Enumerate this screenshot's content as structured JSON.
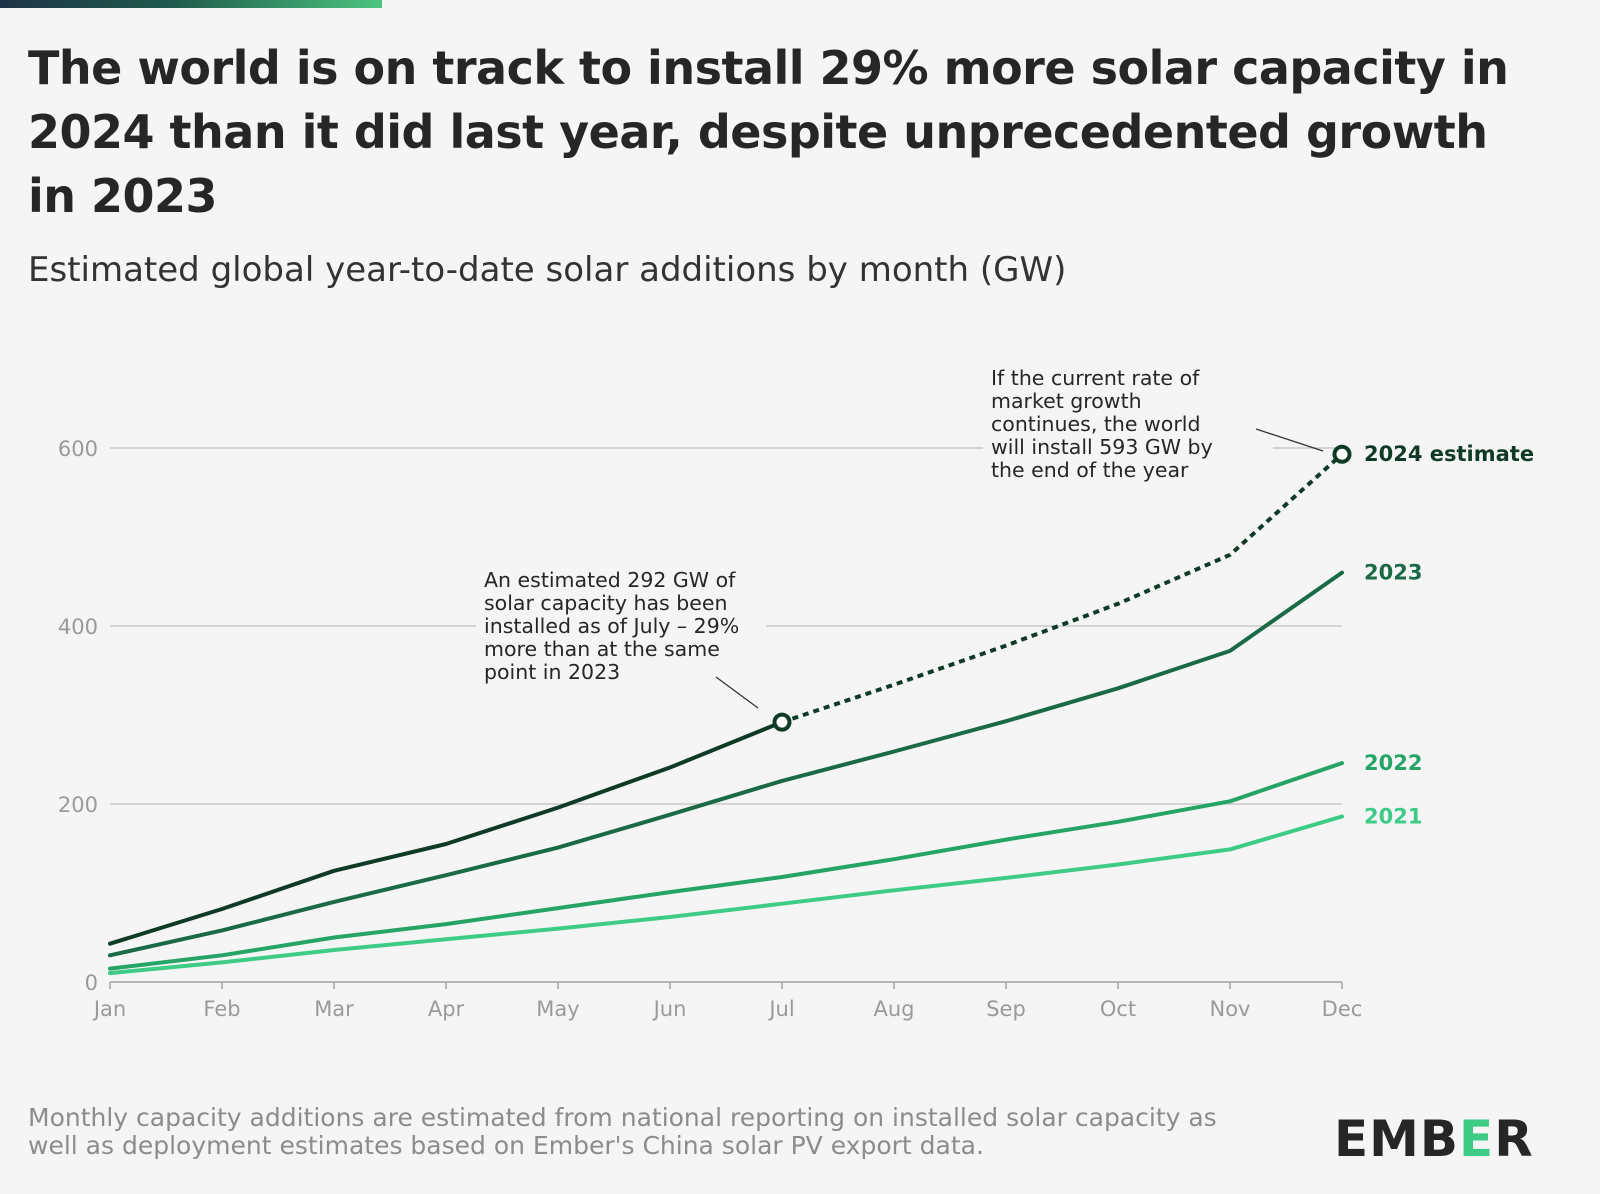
{
  "header": {
    "title": "The world is on track to install 29% more solar capacity in 2024 than it did last year, despite unprecedented growth in 2023",
    "subtitle": "Estimated global year-to-date solar additions by month (GW)"
  },
  "footer": {
    "note": "Monthly capacity additions are estimated from national reporting on installed solar capacity as well as deployment estimates based on Ember's China solar PV export data.",
    "logo_text": "EMBER"
  },
  "colors": {
    "background": "#f5f5f5",
    "s2021": "#3ecb85",
    "s2022": "#25a465",
    "s2023": "#1a6a47",
    "s2024": "#0f3a26",
    "logo_accent": "#3ecb85"
  },
  "chart_data": {
    "type": "line",
    "title": "",
    "xlabel": "",
    "ylabel": "",
    "categories": [
      "Jan",
      "Feb",
      "Mar",
      "Apr",
      "May",
      "Jun",
      "Jul",
      "Aug",
      "Sep",
      "Oct",
      "Nov",
      "Dec"
    ],
    "y_ticks": [
      0,
      200,
      400,
      600
    ],
    "ylim": [
      0,
      600
    ],
    "grid": true,
    "series": [
      {
        "name": "2021",
        "values": [
          10,
          22,
          36,
          48,
          60,
          73,
          88,
          103,
          117,
          132,
          149,
          186
        ],
        "color": "#3ecb85",
        "style": "solid"
      },
      {
        "name": "2022",
        "values": [
          15,
          30,
          50,
          65,
          83,
          101,
          118,
          138,
          160,
          180,
          203,
          246
        ],
        "color": "#25a465",
        "style": "solid"
      },
      {
        "name": "2023",
        "values": [
          30,
          58,
          90,
          120,
          151,
          188,
          226,
          259,
          293,
          330,
          372,
          460
        ],
        "color": "#1a6a47",
        "style": "solid"
      },
      {
        "name": "2024 estimate",
        "values": [
          43,
          82,
          125,
          155,
          196,
          241,
          292,
          null,
          null,
          null,
          null,
          null
        ],
        "color": "#0f3a26",
        "style": "solid",
        "estimate_values": [
          null,
          null,
          null,
          null,
          null,
          null,
          292,
          334,
          378,
          425,
          480,
          593
        ]
      }
    ],
    "annotations": [
      {
        "text_lines": [
          "An estimated 292 GW of",
          "solar capacity has been",
          "installed as of July – 29%",
          "more than at the same",
          "point in 2023"
        ],
        "target": "Jul"
      },
      {
        "text_lines": [
          "If the current rate of",
          "market growth",
          "continues, the world",
          "will install 593 GW by",
          "the end of the year"
        ],
        "target": "Dec"
      }
    ]
  }
}
